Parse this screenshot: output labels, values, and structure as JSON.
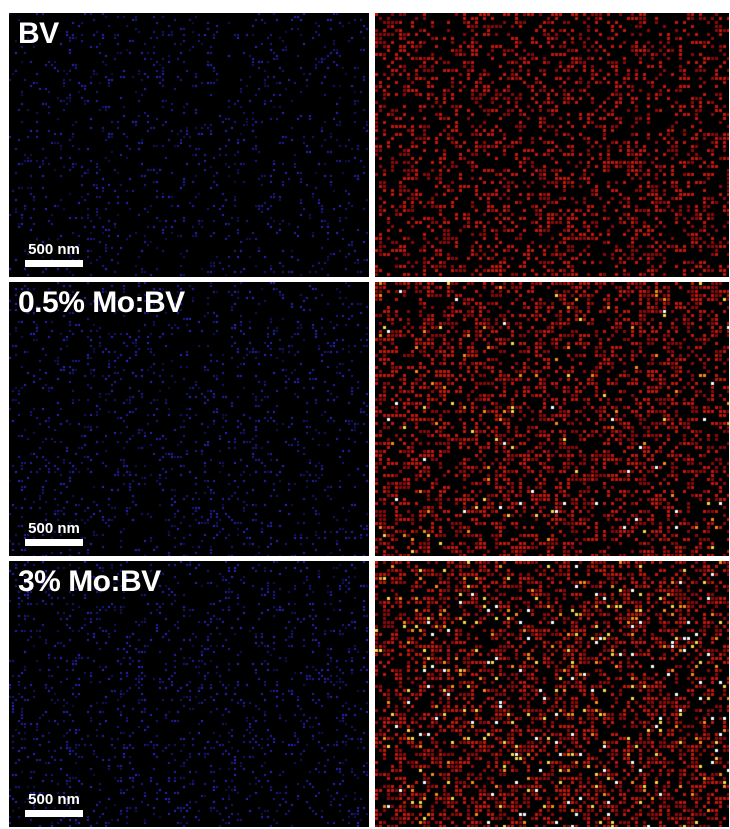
{
  "rows": [
    {
      "label": "BV",
      "scale_label": "500 nm",
      "blue_density": 0.1,
      "heat_density": 0.34,
      "bright_ratio": 0.0
    },
    {
      "label": "0.5% Mo:BV",
      "scale_label": "500 nm",
      "blue_density": 0.12,
      "heat_density": 0.4,
      "bright_ratio": 0.05
    },
    {
      "label": "3% Mo:BV",
      "scale_label": "500 nm",
      "blue_density": 0.14,
      "heat_density": 0.46,
      "bright_ratio": 0.12
    }
  ],
  "colors": {
    "background": "#000000",
    "blue_map": "#2b2bd6",
    "heat_dark": "#8b0a0a",
    "heat_red": "#c8170c",
    "heat_orange": "#ff8c10",
    "heat_yellow": "#ffd84a",
    "heat_white": "#ffffff"
  }
}
